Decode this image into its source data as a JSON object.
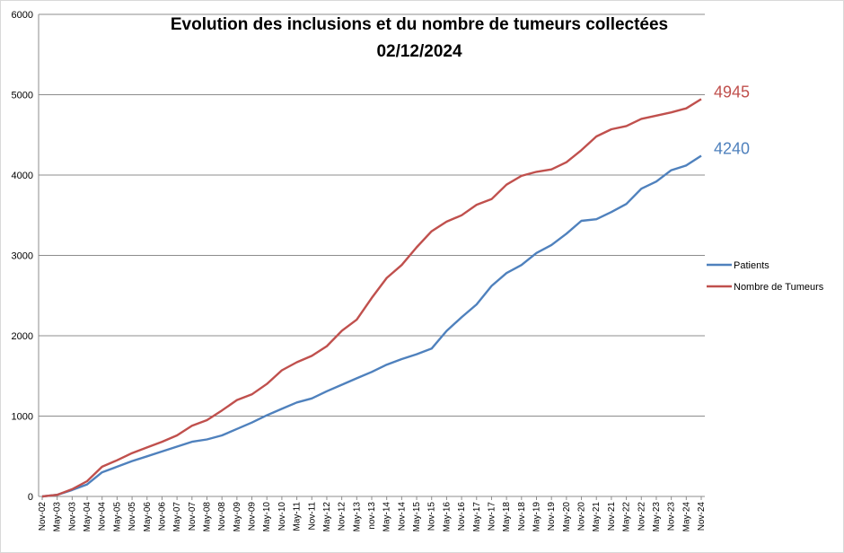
{
  "chart_data": {
    "type": "line",
    "title": "Evolution des inclusions et du nombre de tumeurs collectées",
    "subtitle": "02/12/2024",
    "xlabel": "",
    "ylabel": "",
    "ylim": [
      0,
      6000
    ],
    "yticks": [
      "0",
      "1000",
      "2000",
      "3000",
      "4000",
      "5000",
      "6000"
    ],
    "grid": true,
    "legend_position": "right",
    "x_tick_labels": [
      "Nov-02",
      "May-03",
      "Nov-03",
      "May-04",
      "Nov-04",
      "May-05",
      "Nov-05",
      "May-06",
      "Nov-06",
      "May-07",
      "Nov-07",
      "May-08",
      "Nov-08",
      "May-09",
      "Nov-09",
      "May-10",
      "Nov-10",
      "May-11",
      "Nov-11",
      "May-12",
      "Nov-12",
      "May-13",
      "nov-13",
      "May-14",
      "Nov-14",
      "May-15",
      "Nov-15",
      "May-16",
      "Nov-16",
      "May-17",
      "Nov-17",
      "May-18",
      "Nov-18",
      "May-19",
      "Nov-19",
      "May-20",
      "Nov-20",
      "May-21",
      "Nov-21",
      "May-22",
      "Nov-22",
      "May-23",
      "Nov-23",
      "May-24",
      "Nov-24"
    ],
    "series": [
      {
        "name": "Patients",
        "color": "#4f81bd",
        "end_label": "4240",
        "values": [
          0,
          20,
          80,
          150,
          300,
          370,
          440,
          500,
          560,
          620,
          680,
          710,
          760,
          840,
          920,
          1010,
          1090,
          1170,
          1220,
          1310,
          1390,
          1470,
          1550,
          1640,
          1710,
          1770,
          1840,
          2060,
          2230,
          2390,
          2620,
          2780,
          2880,
          3030,
          3130,
          3270,
          3430,
          3450,
          3540,
          3640,
          3830,
          3920,
          4060,
          4120,
          4240
        ]
      },
      {
        "name": "Nombre de Tumeurs",
        "color": "#c0504d",
        "end_label": "4945",
        "values": [
          0,
          20,
          90,
          190,
          370,
          450,
          540,
          610,
          680,
          760,
          880,
          950,
          1070,
          1200,
          1270,
          1400,
          1570,
          1670,
          1750,
          1870,
          2060,
          2200,
          2470,
          2720,
          2880,
          3100,
          3300,
          3420,
          3500,
          3630,
          3700,
          3880,
          3990,
          4040,
          4070,
          4160,
          4310,
          4480,
          4570,
          4610,
          4700,
          4740,
          4780,
          4830,
          4945
        ]
      }
    ]
  }
}
